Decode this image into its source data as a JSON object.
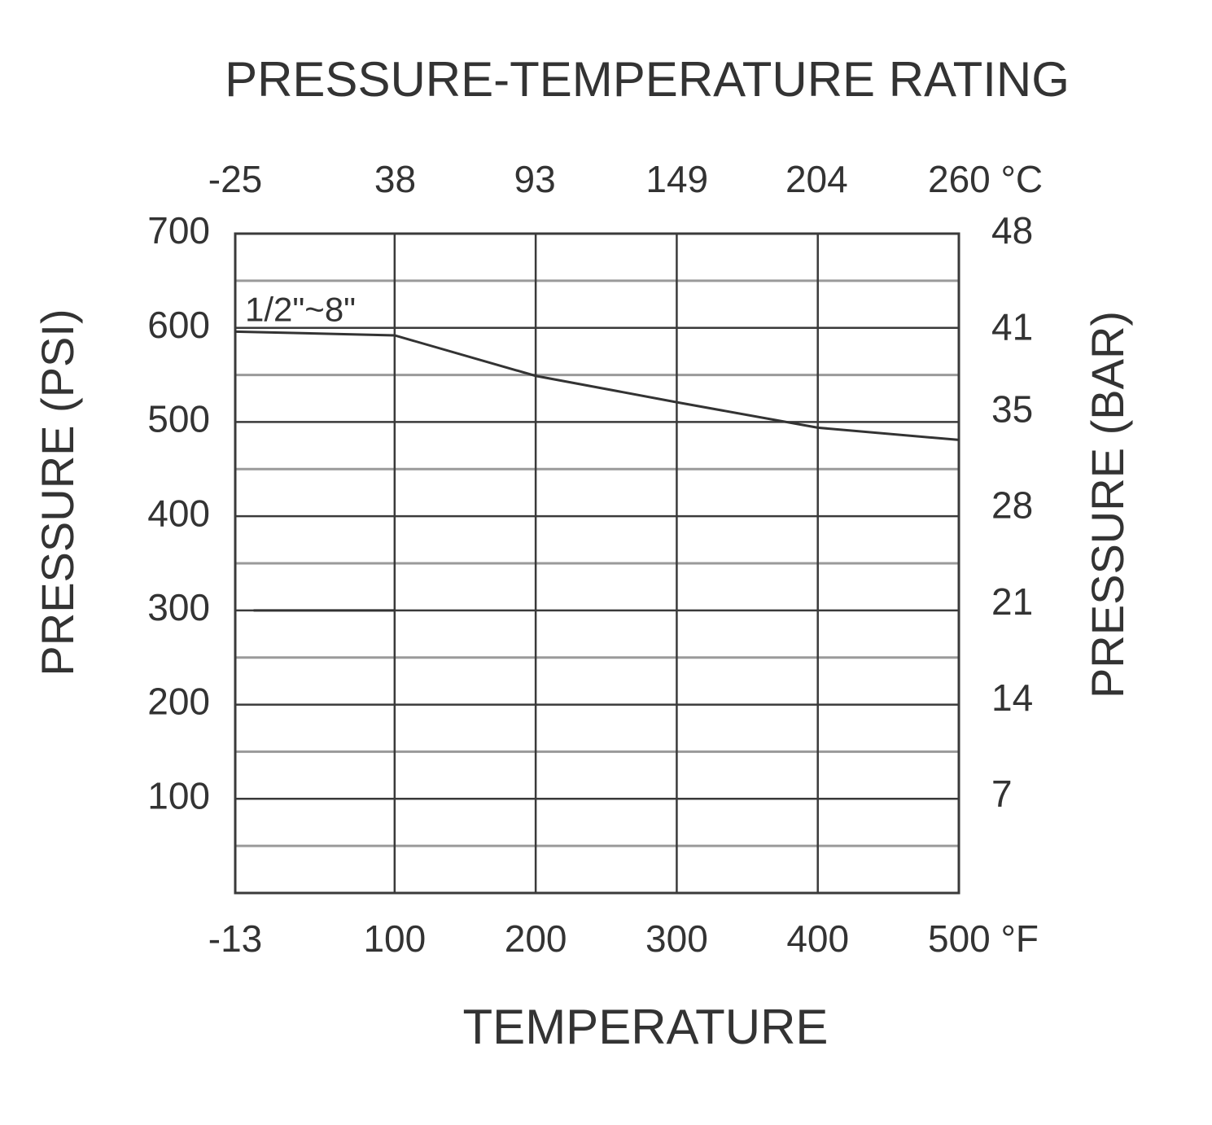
{
  "chart_data": {
    "type": "line",
    "title": "PRESSURE-TEMPERATURE RATING",
    "x_label": "TEMPERATURE",
    "y_label": "PRESSURE (PSI)",
    "y2_label": "PRESSURE (BAR)",
    "xlim": [
      -13,
      500
    ],
    "xticks": [
      -13,
      100,
      200,
      300,
      400,
      {
        "value": 500,
        "label": "500 °F"
      }
    ],
    "x2lim": [
      -25,
      260
    ],
    "x2ticks": [
      -25,
      38,
      93,
      149,
      204,
      {
        "value": 260,
        "label": "260 °C"
      }
    ],
    "ylim": [
      0,
      700
    ],
    "yticks": [
      100,
      200,
      300,
      400,
      500,
      600,
      700
    ],
    "yminor": [
      50,
      150,
      250,
      350,
      450,
      550,
      650
    ],
    "y2lim": [
      0,
      48
    ],
    "y2ticks": [
      7,
      14,
      21,
      28,
      35,
      41,
      48
    ],
    "grid": true,
    "series": [
      {
        "name": "1/2\"~8\"",
        "color": "#333333",
        "x": [
          -13,
          100,
          200,
          300,
          400,
          500
        ],
        "values": [
          596,
          592,
          549,
          521,
          494,
          481
        ]
      },
      {
        "color": "#333333",
        "x": [
          0,
          100
        ],
        "values": [
          300,
          300
        ]
      }
    ]
  }
}
